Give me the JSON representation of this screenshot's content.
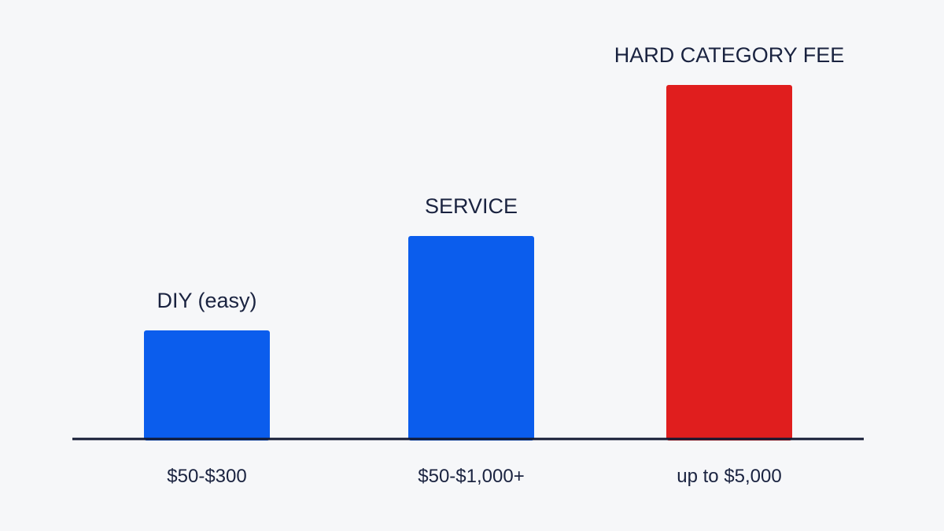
{
  "chart_data": {
    "type": "bar",
    "categories": [
      "$50-$300",
      "$50-$1,000+",
      "up to $5,000"
    ],
    "bar_labels": [
      "DIY (easy)",
      "SERVICE",
      "HARD CATEGORY FEE"
    ],
    "values": [
      300,
      1000,
      5000
    ],
    "ylim": [
      0,
      5000
    ],
    "grid": false,
    "legend": "none",
    "colors": [
      "#0b5ded",
      "#0b5ded",
      "#e01e1e"
    ],
    "axis_color": "#131a33"
  }
}
